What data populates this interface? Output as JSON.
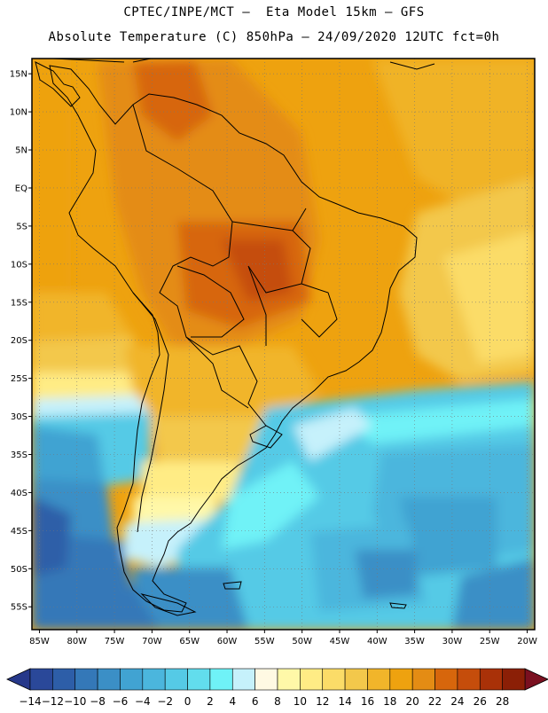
{
  "header": {
    "line1": "CPTEC/INPE/MCT –  Eta Model 15km – GFS",
    "line2": "Absolute Temperature (C) 850hPa – 24/09/2020 12UTC fct=0h"
  },
  "map": {
    "lon_range": [
      -86,
      -19
    ],
    "lat_range": [
      -58,
      17
    ],
    "lat_ticks": [
      {
        "value": 15,
        "label": "15N"
      },
      {
        "value": 10,
        "label": "10N"
      },
      {
        "value": 5,
        "label": "5N"
      },
      {
        "value": 0,
        "label": "EQ"
      },
      {
        "value": -5,
        "label": "5S"
      },
      {
        "value": -10,
        "label": "10S"
      },
      {
        "value": -15,
        "label": "15S"
      },
      {
        "value": -20,
        "label": "20S"
      },
      {
        "value": -25,
        "label": "25S"
      },
      {
        "value": -30,
        "label": "30S"
      },
      {
        "value": -35,
        "label": "35S"
      },
      {
        "value": -40,
        "label": "40S"
      },
      {
        "value": -45,
        "label": "45S"
      },
      {
        "value": -50,
        "label": "50S"
      },
      {
        "value": -55,
        "label": "55S"
      }
    ],
    "lon_ticks": [
      {
        "value": -85,
        "label": "85W"
      },
      {
        "value": -80,
        "label": "80W"
      },
      {
        "value": -75,
        "label": "75W"
      },
      {
        "value": -70,
        "label": "70W"
      },
      {
        "value": -65,
        "label": "65W"
      },
      {
        "value": -60,
        "label": "60W"
      },
      {
        "value": -55,
        "label": "55W"
      },
      {
        "value": -50,
        "label": "50W"
      },
      {
        "value": -45,
        "label": "45W"
      },
      {
        "value": -40,
        "label": "40W"
      },
      {
        "value": -35,
        "label": "35W"
      },
      {
        "value": -30,
        "label": "30W"
      },
      {
        "value": -25,
        "label": "25W"
      },
      {
        "value": -20,
        "label": "20W"
      }
    ],
    "grid": "dotted"
  },
  "colorbar": {
    "levels": [
      {
        "label": "-14",
        "color": "#2a4899"
      },
      {
        "label": "-12",
        "color": "#2d5ea8"
      },
      {
        "label": "-10",
        "color": "#3478b8"
      },
      {
        "label": "-8",
        "color": "#3b8fc6"
      },
      {
        "label": "-6",
        "color": "#41a3d2"
      },
      {
        "label": "-4",
        "color": "#4bb6dd"
      },
      {
        "label": "-2",
        "color": "#55cae6"
      },
      {
        "label": "0",
        "color": "#62dded"
      },
      {
        "label": "2",
        "color": "#6ff2f7"
      },
      {
        "label": "4",
        "color": "#c6f1fb"
      },
      {
        "label": "6",
        "color": "#fff9e3"
      },
      {
        "label": "8",
        "color": "#fff8a8"
      },
      {
        "label": "10",
        "color": "#ffec85"
      },
      {
        "label": "12",
        "color": "#fbdc68"
      },
      {
        "label": "14",
        "color": "#f3c84b"
      },
      {
        "label": "16",
        "color": "#f1b52a"
      },
      {
        "label": "18",
        "color": "#eea20f"
      },
      {
        "label": "20",
        "color": "#e48c14"
      },
      {
        "label": "22",
        "color": "#d7660c"
      },
      {
        "label": "24",
        "color": "#c54d0b"
      },
      {
        "label": "26",
        "color": "#a93108"
      },
      {
        "label": "28",
        "color": "#8b1f06"
      }
    ],
    "low_end_color": "#26388a",
    "high_end_color": "#7a1020"
  }
}
